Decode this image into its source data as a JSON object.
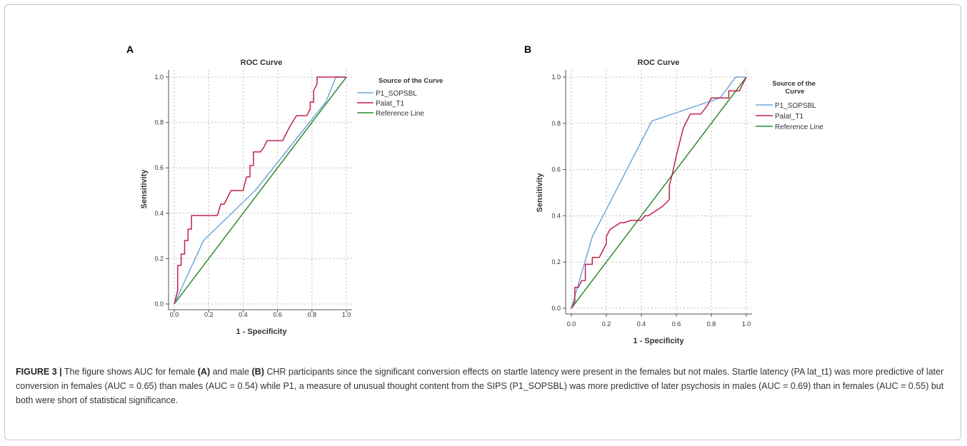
{
  "chart_data": [
    {
      "panel": "A",
      "type": "line",
      "title": "ROC Curve",
      "xlabel": "1 - Specificity",
      "ylabel": "Sensitivity",
      "xlim": [
        0,
        1
      ],
      "ylim": [
        0,
        1
      ],
      "xticks": [
        "0.0",
        "0.2",
        "0.4",
        "0.6",
        "0.8",
        "1.0"
      ],
      "yticks": [
        "0.0",
        "0.2",
        "0.4",
        "0.6",
        "0.8",
        "1.0"
      ],
      "grid": true,
      "legend": {
        "title": "Source of the Curve",
        "position": "right"
      },
      "series": [
        {
          "name": "P1_SOPSBL",
          "color": "#6fa8dc",
          "x": [
            0,
            0.17,
            0.47,
            0.88,
            0.94,
            1.0
          ],
          "y": [
            0,
            0.28,
            0.5,
            0.89,
            1.0,
            1.0
          ]
        },
        {
          "name": "Palat_T1",
          "color": "#c0224a",
          "x": [
            0,
            0.02,
            0.02,
            0.04,
            0.04,
            0.06,
            0.06,
            0.08,
            0.08,
            0.1,
            0.1,
            0.25,
            0.27,
            0.29,
            0.31,
            0.33,
            0.33,
            0.4,
            0.42,
            0.44,
            0.44,
            0.46,
            0.46,
            0.5,
            0.52,
            0.54,
            0.56,
            0.63,
            0.65,
            0.67,
            0.71,
            0.71,
            0.77,
            0.77,
            0.79,
            0.79,
            0.81,
            0.81,
            0.83,
            0.83,
            1.0
          ],
          "y": [
            0,
            0.06,
            0.17,
            0.17,
            0.22,
            0.22,
            0.28,
            0.28,
            0.33,
            0.33,
            0.39,
            0.39,
            0.44,
            0.44,
            0.47,
            0.5,
            0.5,
            0.5,
            0.56,
            0.56,
            0.61,
            0.61,
            0.67,
            0.67,
            0.69,
            0.72,
            0.72,
            0.72,
            0.75,
            0.78,
            0.83,
            0.83,
            0.83,
            0.83,
            0.86,
            0.89,
            0.89,
            0.94,
            0.97,
            1.0,
            1.0
          ]
        },
        {
          "name": "Reference Line",
          "color": "#2e8b2e",
          "x": [
            0,
            1
          ],
          "y": [
            0,
            1
          ]
        }
      ]
    },
    {
      "panel": "B",
      "type": "line",
      "title": "ROC Curve",
      "xlabel": "1 - Specificity",
      "ylabel": "Sensitivity",
      "xlim": [
        0,
        1
      ],
      "ylim": [
        0,
        1
      ],
      "xticks": [
        "0.0",
        "0.2",
        "0.4",
        "0.6",
        "0.8",
        "1.0"
      ],
      "yticks": [
        "0.0",
        "0.2",
        "0.4",
        "0.6",
        "0.8",
        "1.0"
      ],
      "grid": true,
      "legend": {
        "title": "Source of the Curve",
        "position": "right"
      },
      "series": [
        {
          "name": "P1_SOPSBL",
          "color": "#6fa8dc",
          "x": [
            0,
            0.12,
            0.46,
            0.85,
            0.94,
            1.0
          ],
          "y": [
            0,
            0.31,
            0.81,
            0.91,
            1.0,
            1.0
          ]
        },
        {
          "name": "Palat_T1",
          "color": "#c0224a",
          "x": [
            0,
            0.02,
            0.02,
            0.04,
            0.04,
            0.06,
            0.08,
            0.08,
            0.1,
            0.12,
            0.12,
            0.14,
            0.16,
            0.18,
            0.2,
            0.2,
            0.22,
            0.28,
            0.3,
            0.34,
            0.4,
            0.42,
            0.44,
            0.52,
            0.56,
            0.56,
            0.58,
            0.6,
            0.62,
            0.64,
            0.66,
            0.68,
            0.68,
            0.72,
            0.74,
            0.78,
            0.8,
            0.82,
            0.88,
            0.9,
            0.9,
            0.94,
            0.96,
            0.98,
            1.0
          ],
          "y": [
            0,
            0.03,
            0.09,
            0.09,
            0.09,
            0.12,
            0.12,
            0.19,
            0.19,
            0.19,
            0.22,
            0.22,
            0.22,
            0.25,
            0.28,
            0.31,
            0.34,
            0.37,
            0.37,
            0.38,
            0.38,
            0.4,
            0.4,
            0.44,
            0.47,
            0.53,
            0.59,
            0.66,
            0.72,
            0.78,
            0.81,
            0.84,
            0.84,
            0.84,
            0.84,
            0.88,
            0.91,
            0.91,
            0.91,
            0.91,
            0.94,
            0.94,
            0.94,
            0.97,
            1.0
          ]
        },
        {
          "name": "Reference Line",
          "color": "#2e8b2e",
          "x": [
            0,
            1
          ],
          "y": [
            0,
            1
          ]
        }
      ]
    }
  ],
  "caption": {
    "label": "FIGURE 3 |",
    "parts": [
      " The figure shows AUC for female ",
      "(A)",
      " and male ",
      "(B)",
      " CHR participants since the significant conversion effects on startle latency were present in the females but not males. Startle latency (PA lat_t1) was more predictive of later conversion in females (AUC = 0.65) than males (AUC = 0.54) while P1, a measure of unusual thought content from the SIPS (P1_SOPSBL) was more predictive of later psychosis in males (AUC = 0.69) than in females (AUC = 0.55) but both were short of statistical significance."
    ]
  }
}
